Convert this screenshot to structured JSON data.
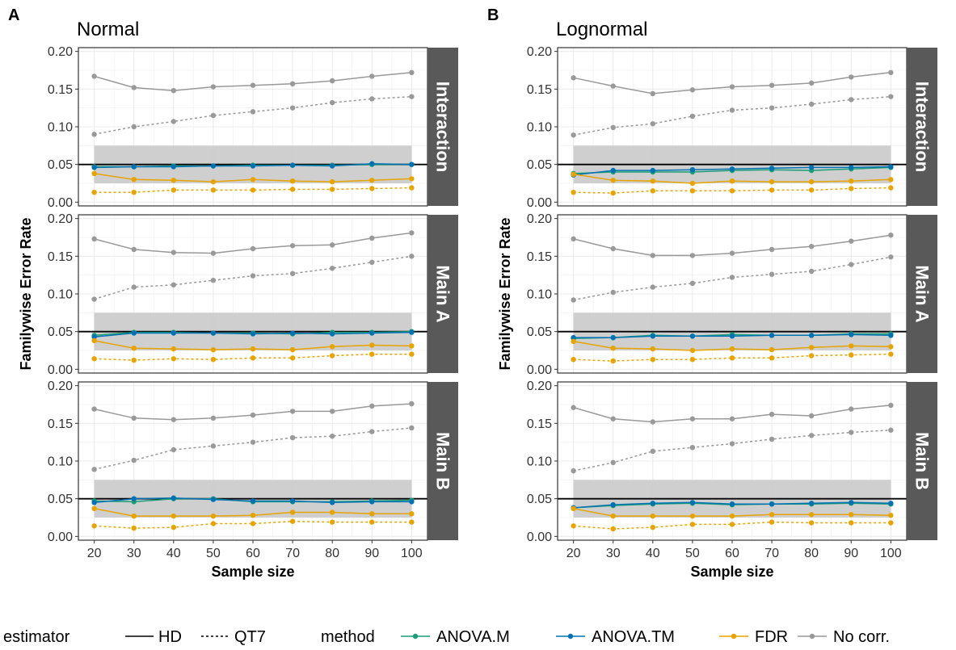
{
  "ylabel": "Familywise Error Rate",
  "xlabel": "Sample size",
  "yticks": [
    0.0,
    0.05,
    0.1,
    0.15,
    0.2
  ],
  "ylim": [
    -0.005,
    0.205
  ],
  "xlim": [
    16,
    104
  ],
  "band": [
    0.025,
    0.075
  ],
  "reference_line": 0.05,
  "rows": [
    "Interaction",
    "Main A",
    "Main B"
  ],
  "colors": {
    "ANOVA.M": "#1b9e77",
    "ANOVA.TM": "#0072b2",
    "FDR": "#e6a400",
    "No corr.": "#999999",
    "band": "#cccccc",
    "strip": "#595959"
  },
  "legend": {
    "estimator_title": "estimator",
    "estimators": [
      {
        "label": "HD",
        "dash": "solid"
      },
      {
        "label": "QT7",
        "dash": "dotted"
      }
    ],
    "method_title": "method",
    "methods": [
      "ANOVA.M",
      "ANOVA.TM",
      "FDR",
      "No corr."
    ]
  },
  "chart_data": [
    {
      "type": "line",
      "panel": "A",
      "title": "Normal",
      "x": [
        20,
        30,
        40,
        50,
        60,
        70,
        80,
        90,
        100
      ],
      "facets": [
        {
          "name": "Interaction",
          "series": [
            {
              "method": "No corr.",
              "estimator": "HD",
              "values": [
                0.167,
                0.152,
                0.148,
                0.153,
                0.155,
                0.157,
                0.161,
                0.167,
                0.172
              ]
            },
            {
              "method": "No corr.",
              "estimator": "QT7",
              "values": [
                0.09,
                0.1,
                0.107,
                0.115,
                0.12,
                0.125,
                0.132,
                0.137,
                0.14
              ]
            },
            {
              "method": "ANOVA.M",
              "estimator": "HD",
              "values": [
                0.047,
                0.047,
                0.048,
                0.048,
                0.049,
                0.049,
                0.049,
                0.05,
                0.05
              ]
            },
            {
              "method": "ANOVA.TM",
              "estimator": "HD",
              "values": [
                0.046,
                0.047,
                0.047,
                0.048,
                0.048,
                0.049,
                0.048,
                0.051,
                0.05
              ]
            },
            {
              "method": "FDR",
              "estimator": "HD",
              "values": [
                0.038,
                0.03,
                0.029,
                0.027,
                0.03,
                0.028,
                0.027,
                0.029,
                0.031
              ]
            },
            {
              "method": "FDR",
              "estimator": "QT7",
              "values": [
                0.013,
                0.013,
                0.016,
                0.016,
                0.016,
                0.017,
                0.017,
                0.018,
                0.019
              ]
            }
          ]
        },
        {
          "name": "Main A",
          "series": [
            {
              "method": "No corr.",
              "estimator": "HD",
              "values": [
                0.173,
                0.159,
                0.155,
                0.154,
                0.16,
                0.164,
                0.165,
                0.174,
                0.181
              ]
            },
            {
              "method": "No corr.",
              "estimator": "QT7",
              "values": [
                0.093,
                0.109,
                0.112,
                0.118,
                0.124,
                0.127,
                0.134,
                0.142,
                0.15
              ]
            },
            {
              "method": "ANOVA.M",
              "estimator": "HD",
              "values": [
                0.045,
                0.049,
                0.049,
                0.048,
                0.048,
                0.047,
                0.049,
                0.049,
                0.05
              ]
            },
            {
              "method": "ANOVA.TM",
              "estimator": "HD",
              "values": [
                0.043,
                0.048,
                0.048,
                0.048,
                0.047,
                0.048,
                0.047,
                0.048,
                0.049
              ]
            },
            {
              "method": "FDR",
              "estimator": "HD",
              "values": [
                0.038,
                0.028,
                0.027,
                0.026,
                0.027,
                0.026,
                0.03,
                0.032,
                0.031
              ]
            },
            {
              "method": "FDR",
              "estimator": "QT7",
              "values": [
                0.014,
                0.012,
                0.014,
                0.013,
                0.015,
                0.015,
                0.018,
                0.02,
                0.02
              ]
            }
          ]
        },
        {
          "name": "Main B",
          "series": [
            {
              "method": "No corr.",
              "estimator": "HD",
              "values": [
                0.169,
                0.157,
                0.155,
                0.157,
                0.161,
                0.166,
                0.166,
                0.173,
                0.176
              ]
            },
            {
              "method": "No corr.",
              "estimator": "QT7",
              "values": [
                0.089,
                0.101,
                0.115,
                0.12,
                0.125,
                0.131,
                0.133,
                0.139,
                0.144
              ]
            },
            {
              "method": "ANOVA.M",
              "estimator": "HD",
              "values": [
                0.047,
                0.046,
                0.05,
                0.05,
                0.046,
                0.046,
                0.046,
                0.047,
                0.048
              ]
            },
            {
              "method": "ANOVA.TM",
              "estimator": "HD",
              "values": [
                0.045,
                0.05,
                0.051,
                0.049,
                0.047,
                0.047,
                0.045,
                0.046,
                0.046
              ]
            },
            {
              "method": "FDR",
              "estimator": "HD",
              "values": [
                0.037,
                0.027,
                0.027,
                0.027,
                0.028,
                0.032,
                0.032,
                0.03,
                0.03
              ]
            },
            {
              "method": "FDR",
              "estimator": "QT7",
              "values": [
                0.014,
                0.011,
                0.012,
                0.017,
                0.017,
                0.02,
                0.019,
                0.019,
                0.019
              ]
            }
          ]
        }
      ]
    },
    {
      "type": "line",
      "panel": "B",
      "title": "Lognormal",
      "x": [
        20,
        30,
        40,
        50,
        60,
        70,
        80,
        90,
        100
      ],
      "facets": [
        {
          "name": "Interaction",
          "series": [
            {
              "method": "No corr.",
              "estimator": "HD",
              "values": [
                0.165,
                0.154,
                0.144,
                0.149,
                0.153,
                0.155,
                0.158,
                0.166,
                0.172
              ]
            },
            {
              "method": "No corr.",
              "estimator": "QT7",
              "values": [
                0.089,
                0.099,
                0.104,
                0.114,
                0.122,
                0.125,
                0.13,
                0.136,
                0.14
              ]
            },
            {
              "method": "ANOVA.M",
              "estimator": "HD",
              "values": [
                0.038,
                0.04,
                0.04,
                0.04,
                0.042,
                0.043,
                0.042,
                0.044,
                0.046
              ]
            },
            {
              "method": "ANOVA.TM",
              "estimator": "HD",
              "values": [
                0.036,
                0.042,
                0.042,
                0.043,
                0.044,
                0.045,
                0.046,
                0.046,
                0.047
              ]
            },
            {
              "method": "FDR",
              "estimator": "HD",
              "values": [
                0.037,
                0.029,
                0.028,
                0.025,
                0.028,
                0.027,
                0.027,
                0.028,
                0.03
              ]
            },
            {
              "method": "FDR",
              "estimator": "QT7",
              "values": [
                0.013,
                0.012,
                0.015,
                0.015,
                0.015,
                0.016,
                0.016,
                0.018,
                0.019
              ]
            }
          ]
        },
        {
          "name": "Main A",
          "series": [
            {
              "method": "No corr.",
              "estimator": "HD",
              "values": [
                0.173,
                0.16,
                0.151,
                0.151,
                0.154,
                0.159,
                0.163,
                0.17,
                0.178
              ]
            },
            {
              "method": "No corr.",
              "estimator": "QT7",
              "values": [
                0.092,
                0.102,
                0.109,
                0.114,
                0.122,
                0.126,
                0.13,
                0.139,
                0.149
              ]
            },
            {
              "method": "ANOVA.M",
              "estimator": "HD",
              "values": [
                0.041,
                0.042,
                0.045,
                0.044,
                0.046,
                0.045,
                0.045,
                0.047,
                0.047
              ]
            },
            {
              "method": "ANOVA.TM",
              "estimator": "HD",
              "values": [
                0.042,
                0.042,
                0.044,
                0.044,
                0.044,
                0.045,
                0.045,
                0.046,
                0.045
              ]
            },
            {
              "method": "FDR",
              "estimator": "HD",
              "values": [
                0.037,
                0.028,
                0.027,
                0.025,
                0.027,
                0.026,
                0.029,
                0.031,
                0.03
              ]
            },
            {
              "method": "FDR",
              "estimator": "QT7",
              "values": [
                0.013,
                0.011,
                0.013,
                0.013,
                0.015,
                0.015,
                0.018,
                0.019,
                0.02
              ]
            }
          ]
        },
        {
          "name": "Main B",
          "series": [
            {
              "method": "No corr.",
              "estimator": "HD",
              "values": [
                0.171,
                0.156,
                0.152,
                0.156,
                0.156,
                0.162,
                0.16,
                0.169,
                0.174
              ]
            },
            {
              "method": "No corr.",
              "estimator": "QT7",
              "values": [
                0.087,
                0.098,
                0.113,
                0.118,
                0.123,
                0.129,
                0.134,
                0.138,
                0.141
              ]
            },
            {
              "method": "ANOVA.M",
              "estimator": "HD",
              "values": [
                0.038,
                0.041,
                0.043,
                0.044,
                0.042,
                0.043,
                0.043,
                0.044,
                0.043
              ]
            },
            {
              "method": "ANOVA.TM",
              "estimator": "HD",
              "values": [
                0.038,
                0.042,
                0.044,
                0.045,
                0.043,
                0.043,
                0.044,
                0.045,
                0.044
              ]
            },
            {
              "method": "FDR",
              "estimator": "HD",
              "values": [
                0.037,
                0.027,
                0.027,
                0.027,
                0.027,
                0.029,
                0.029,
                0.029,
                0.028
              ]
            },
            {
              "method": "FDR",
              "estimator": "QT7",
              "values": [
                0.014,
                0.01,
                0.012,
                0.016,
                0.016,
                0.019,
                0.018,
                0.018,
                0.018
              ]
            }
          ]
        }
      ]
    }
  ]
}
